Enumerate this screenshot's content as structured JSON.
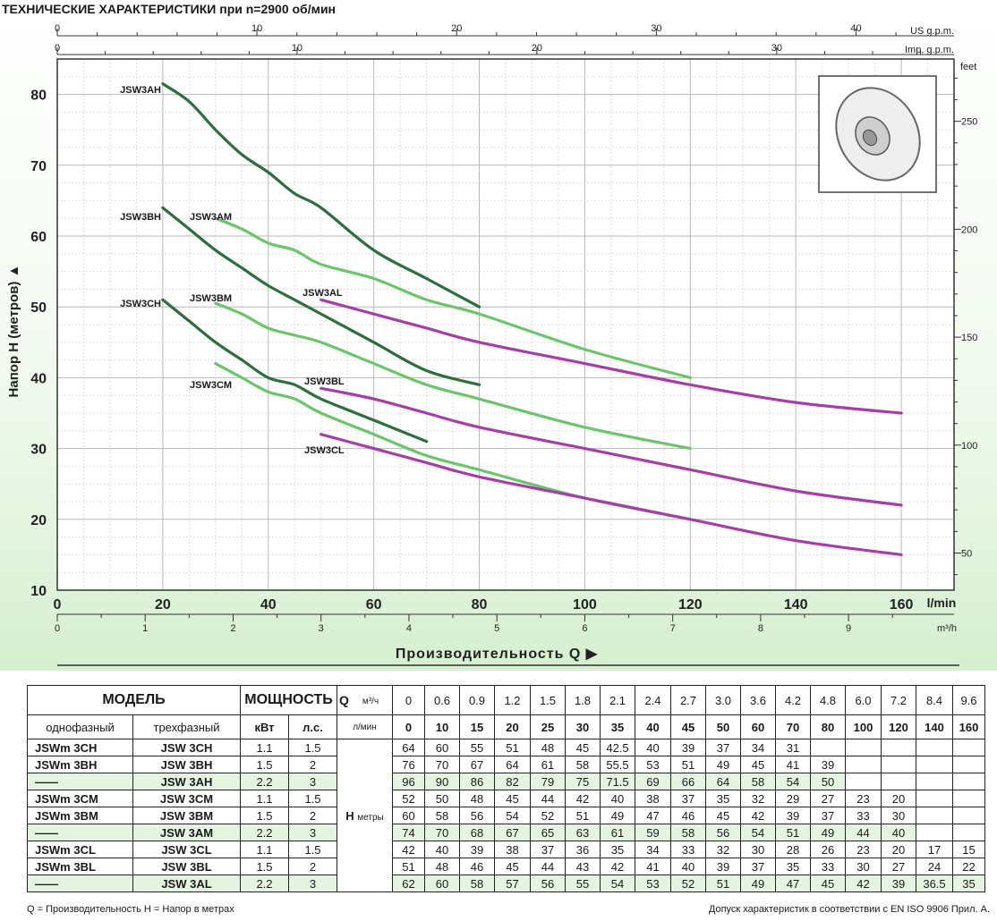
{
  "page": {
    "title": "ТЕХНИЧЕСКИЕ ХАРАКТЕРИСТИКИ при n=2900 об/мин",
    "footer_left": "Q = Производительность  H = Напор в метрах",
    "footer_right": "Допуск характеристик в соответствии с EN ISO 9906 Прил.  А."
  },
  "chart_data": {
    "type": "line",
    "title": "ТЕХНИЧЕСКИЕ ХАРАКТЕРИСТИКИ при n=2900 об/мин",
    "xlabel": "Производительность  Q",
    "ylabel": "Напор H  (метров)",
    "x_unit": "l/min",
    "xlim": [
      0,
      160
    ],
    "ylim": [
      10,
      85
    ],
    "grid": true,
    "x_ticks": [
      0,
      20,
      40,
      60,
      80,
      100,
      120,
      140,
      160
    ],
    "y_ticks": [
      10,
      20,
      30,
      40,
      50,
      60,
      70,
      80
    ],
    "secondary_axes": {
      "us_gpm": {
        "label": "US g.p.m.",
        "ticks": [
          0,
          10,
          20,
          30,
          40
        ]
      },
      "imp_gpm": {
        "label": "Imp. g.p.m.",
        "ticks": [
          0,
          10,
          20,
          30
        ]
      },
      "m3h": {
        "label": "m³/h",
        "ticks": [
          0,
          1,
          2,
          3,
          4,
          5,
          6,
          7,
          8,
          9
        ]
      },
      "feet": {
        "label": "feet",
        "ticks": [
          50,
          100,
          150,
          200,
          250
        ]
      }
    },
    "series": [
      {
        "name": "JSW3AH",
        "color": "#2e6e3e",
        "x": [
          20,
          25,
          30,
          35,
          40,
          45,
          50,
          60,
          70,
          80
        ],
        "y": [
          81.5,
          79,
          75,
          71.5,
          69,
          66,
          64,
          58,
          54,
          50
        ]
      },
      {
        "name": "JSW3BH",
        "color": "#2e6e3e",
        "x": [
          20,
          25,
          30,
          35,
          40,
          45,
          50,
          60,
          70,
          80
        ],
        "y": [
          64,
          61,
          58,
          55.5,
          53,
          51,
          49,
          45,
          41,
          39
        ]
      },
      {
        "name": "JSW3CH",
        "color": "#2e6e3e",
        "x": [
          20,
          25,
          30,
          35,
          40,
          45,
          50,
          60,
          70
        ],
        "y": [
          51,
          48,
          45,
          42.5,
          40,
          39,
          37,
          34,
          31
        ]
      },
      {
        "name": "JSW3AM",
        "color": "#6cc46c",
        "x": [
          30,
          35,
          40,
          45,
          50,
          60,
          70,
          80,
          100,
          120
        ],
        "y": [
          62.5,
          61,
          59,
          58,
          56,
          54,
          51,
          49,
          44,
          40
        ]
      },
      {
        "name": "JSW3BM",
        "color": "#6cc46c",
        "x": [
          30,
          35,
          40,
          45,
          50,
          60,
          70,
          80,
          100,
          120
        ],
        "y": [
          50.5,
          49,
          47,
          46,
          45,
          42,
          39,
          37,
          33,
          30
        ]
      },
      {
        "name": "JSW3CM",
        "color": "#6cc46c",
        "x": [
          30,
          35,
          40,
          45,
          50,
          60,
          70,
          80,
          100,
          120
        ],
        "y": [
          42,
          40,
          38,
          37,
          35,
          32,
          29,
          27,
          23,
          20
        ]
      },
      {
        "name": "JSW3AL",
        "color": "#a63ea6",
        "x": [
          50,
          60,
          70,
          80,
          100,
          120,
          140,
          160
        ],
        "y": [
          51,
          49,
          47,
          45,
          42,
          39,
          36.5,
          35
        ]
      },
      {
        "name": "JSW3BL",
        "color": "#a63ea6",
        "x": [
          50,
          60,
          70,
          80,
          100,
          120,
          140,
          160
        ],
        "y": [
          38.5,
          37,
          35,
          33,
          30,
          27,
          24,
          22
        ]
      },
      {
        "name": "JSW3CL",
        "color": "#a63ea6",
        "x": [
          50,
          60,
          70,
          80,
          100,
          120,
          140,
          160
        ],
        "y": [
          32,
          30,
          28,
          26,
          23,
          20,
          17,
          15
        ]
      }
    ]
  },
  "table": {
    "model_header": "МОДЕЛЬ",
    "power_header": "МОЩНОСТЬ",
    "single_phase": "однофазный",
    "three_phase": "трехфазный",
    "kw": "кВт",
    "hp": "л.с.",
    "q_label": "Q",
    "m3h_unit": "м³/ч",
    "lmin_unit": "л/мин",
    "h_label": "H",
    "h_unit": "метры",
    "m3h": [
      "0",
      "0.6",
      "0.9",
      "1.2",
      "1.5",
      "1.8",
      "2.1",
      "2.4",
      "2.7",
      "3.0",
      "3.6",
      "4.2",
      "4.8",
      "6.0",
      "7.2",
      "8.4",
      "9.6"
    ],
    "lmin": [
      "0",
      "10",
      "15",
      "20",
      "25",
      "30",
      "35",
      "40",
      "45",
      "50",
      "60",
      "70",
      "80",
      "100",
      "120",
      "140",
      "160"
    ],
    "rows": [
      {
        "single": "JSWm  3CH",
        "three": "JSW  3CH",
        "kw": "1.1",
        "hp": "1.5",
        "values": [
          "64",
          "60",
          "55",
          "51",
          "48",
          "45",
          "42.5",
          "40",
          "39",
          "37",
          "34",
          "31",
          "",
          "",
          "",
          "",
          ""
        ]
      },
      {
        "single": "JSWm  3BH",
        "three": "JSW  3BH",
        "kw": "1.5",
        "hp": "2",
        "values": [
          "76",
          "70",
          "67",
          "64",
          "61",
          "58",
          "55.5",
          "53",
          "51",
          "49",
          "45",
          "41",
          "39",
          "",
          "",
          "",
          ""
        ]
      },
      {
        "single": "——",
        "three": "JSW  3AH",
        "kw": "2.2",
        "hp": "3",
        "values": [
          "96",
          "90",
          "86",
          "82",
          "79",
          "75",
          "71.5",
          "69",
          "66",
          "64",
          "58",
          "54",
          "50",
          "",
          "",
          "",
          ""
        ]
      },
      {
        "single": "JSWm  3CM",
        "three": "JSW  3CM",
        "kw": "1.1",
        "hp": "1.5",
        "values": [
          "52",
          "50",
          "48",
          "45",
          "44",
          "42",
          "40",
          "38",
          "37",
          "35",
          "32",
          "29",
          "27",
          "23",
          "20",
          "",
          ""
        ]
      },
      {
        "single": "JSWm  3BM",
        "three": "JSW  3BM",
        "kw": "1.5",
        "hp": "2",
        "values": [
          "60",
          "58",
          "56",
          "54",
          "52",
          "51",
          "49",
          "47",
          "46",
          "45",
          "42",
          "39",
          "37",
          "33",
          "30",
          "",
          ""
        ]
      },
      {
        "single": "——",
        "three": "JSW  3AM",
        "kw": "2.2",
        "hp": "3",
        "values": [
          "74",
          "70",
          "68",
          "67",
          "65",
          "63",
          "61",
          "59",
          "58",
          "56",
          "54",
          "51",
          "49",
          "44",
          "40",
          "",
          ""
        ]
      },
      {
        "single": "JSWm  3CL",
        "three": "JSW  3CL",
        "kw": "1.1",
        "hp": "1.5",
        "values": [
          "42",
          "40",
          "39",
          "38",
          "37",
          "36",
          "35",
          "34",
          "33",
          "32",
          "30",
          "28",
          "26",
          "23",
          "20",
          "17",
          "15"
        ]
      },
      {
        "single": "JSWm  3BL",
        "three": "JSW  3BL",
        "kw": "1.5",
        "hp": "2",
        "values": [
          "51",
          "48",
          "46",
          "45",
          "44",
          "43",
          "42",
          "41",
          "40",
          "39",
          "37",
          "35",
          "33",
          "30",
          "27",
          "24",
          "22"
        ]
      },
      {
        "single": "——",
        "three": "JSW  3AL",
        "kw": "2.2",
        "hp": "3",
        "values": [
          "62",
          "60",
          "58",
          "57",
          "56",
          "55",
          "54",
          "53",
          "52",
          "51",
          "49",
          "47",
          "45",
          "42",
          "39",
          "36.5",
          "35"
        ]
      }
    ]
  }
}
